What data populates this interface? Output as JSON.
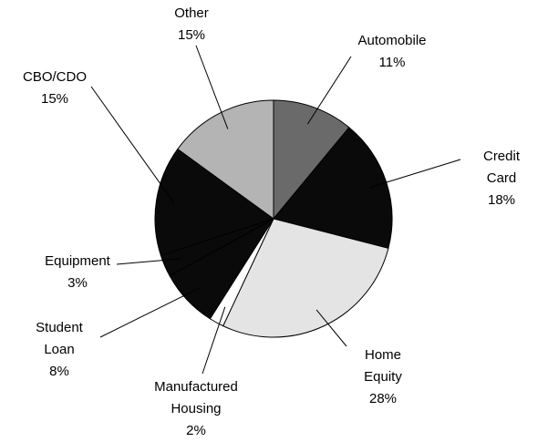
{
  "chart_data": {
    "type": "pie",
    "categories": [
      "Automobile",
      "Credit Card",
      "Home Equity",
      "Manufactured Housing",
      "Student Loan",
      "Equipment",
      "CBO/CDO",
      "Other"
    ],
    "values": [
      11,
      18,
      28,
      2,
      8,
      3,
      15,
      15
    ],
    "value_labels": [
      "11%",
      "18%",
      "28%",
      "2%",
      "8%",
      "3%",
      "15%",
      "15%"
    ],
    "colors": [
      "#6a6a6a",
      "#0a0a0a",
      "#e4e4e4",
      "#ffffff",
      "#0a0a0a",
      "#0a0a0a",
      "#0a0a0a",
      "#b4b4b4"
    ]
  }
}
